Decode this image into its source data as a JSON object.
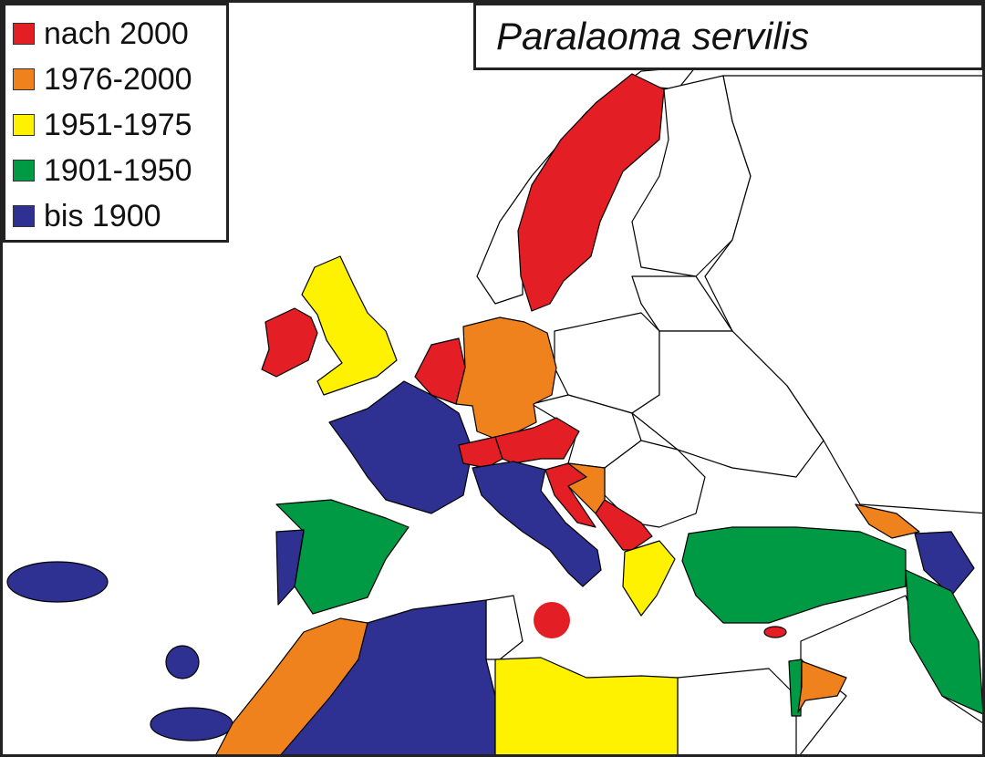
{
  "title": "Paralaoma servilis",
  "legend": [
    {
      "label": "nach 2000",
      "color": "#e31e24"
    },
    {
      "label": "1976-2000",
      "color": "#f0821e"
    },
    {
      "label": "1951-1975",
      "color": "#fff200"
    },
    {
      "label": "1901-1950",
      "color": "#009a44"
    },
    {
      "label": "bis 1900",
      "color": "#2e3192"
    }
  ],
  "regions": [
    {
      "name": "Sweden",
      "period": 0
    },
    {
      "name": "Ireland",
      "period": 0
    },
    {
      "name": "United Kingdom",
      "period": 2
    },
    {
      "name": "Benelux",
      "period": 0
    },
    {
      "name": "Germany",
      "period": 1
    },
    {
      "name": "France",
      "period": 4
    },
    {
      "name": "Switzerland",
      "period": 0
    },
    {
      "name": "Austria",
      "period": 0
    },
    {
      "name": "Italy",
      "period": 4
    },
    {
      "name": "Malta",
      "period": 0
    },
    {
      "name": "Croatia",
      "period": 0
    },
    {
      "name": "Bosnia",
      "period": 1
    },
    {
      "name": "Albania",
      "period": 0
    },
    {
      "name": "Greece",
      "period": 2
    },
    {
      "name": "Spain",
      "period": 3
    },
    {
      "name": "Portugal",
      "period": 4
    },
    {
      "name": "Azores",
      "period": 4
    },
    {
      "name": "Madeira",
      "period": 4
    },
    {
      "name": "Canary Islands",
      "period": 4
    },
    {
      "name": "Morocco",
      "period": 1
    },
    {
      "name": "Algeria",
      "period": 4
    },
    {
      "name": "Libya",
      "period": 2
    },
    {
      "name": "Turkey",
      "period": 3
    },
    {
      "name": "Georgia",
      "period": 1
    },
    {
      "name": "Azerbaijan",
      "period": 4
    },
    {
      "name": "Iran",
      "period": 3
    },
    {
      "name": "Israel",
      "period": 3
    },
    {
      "name": "Jordan",
      "period": 1
    },
    {
      "name": "Cyprus",
      "period": 0
    }
  ]
}
